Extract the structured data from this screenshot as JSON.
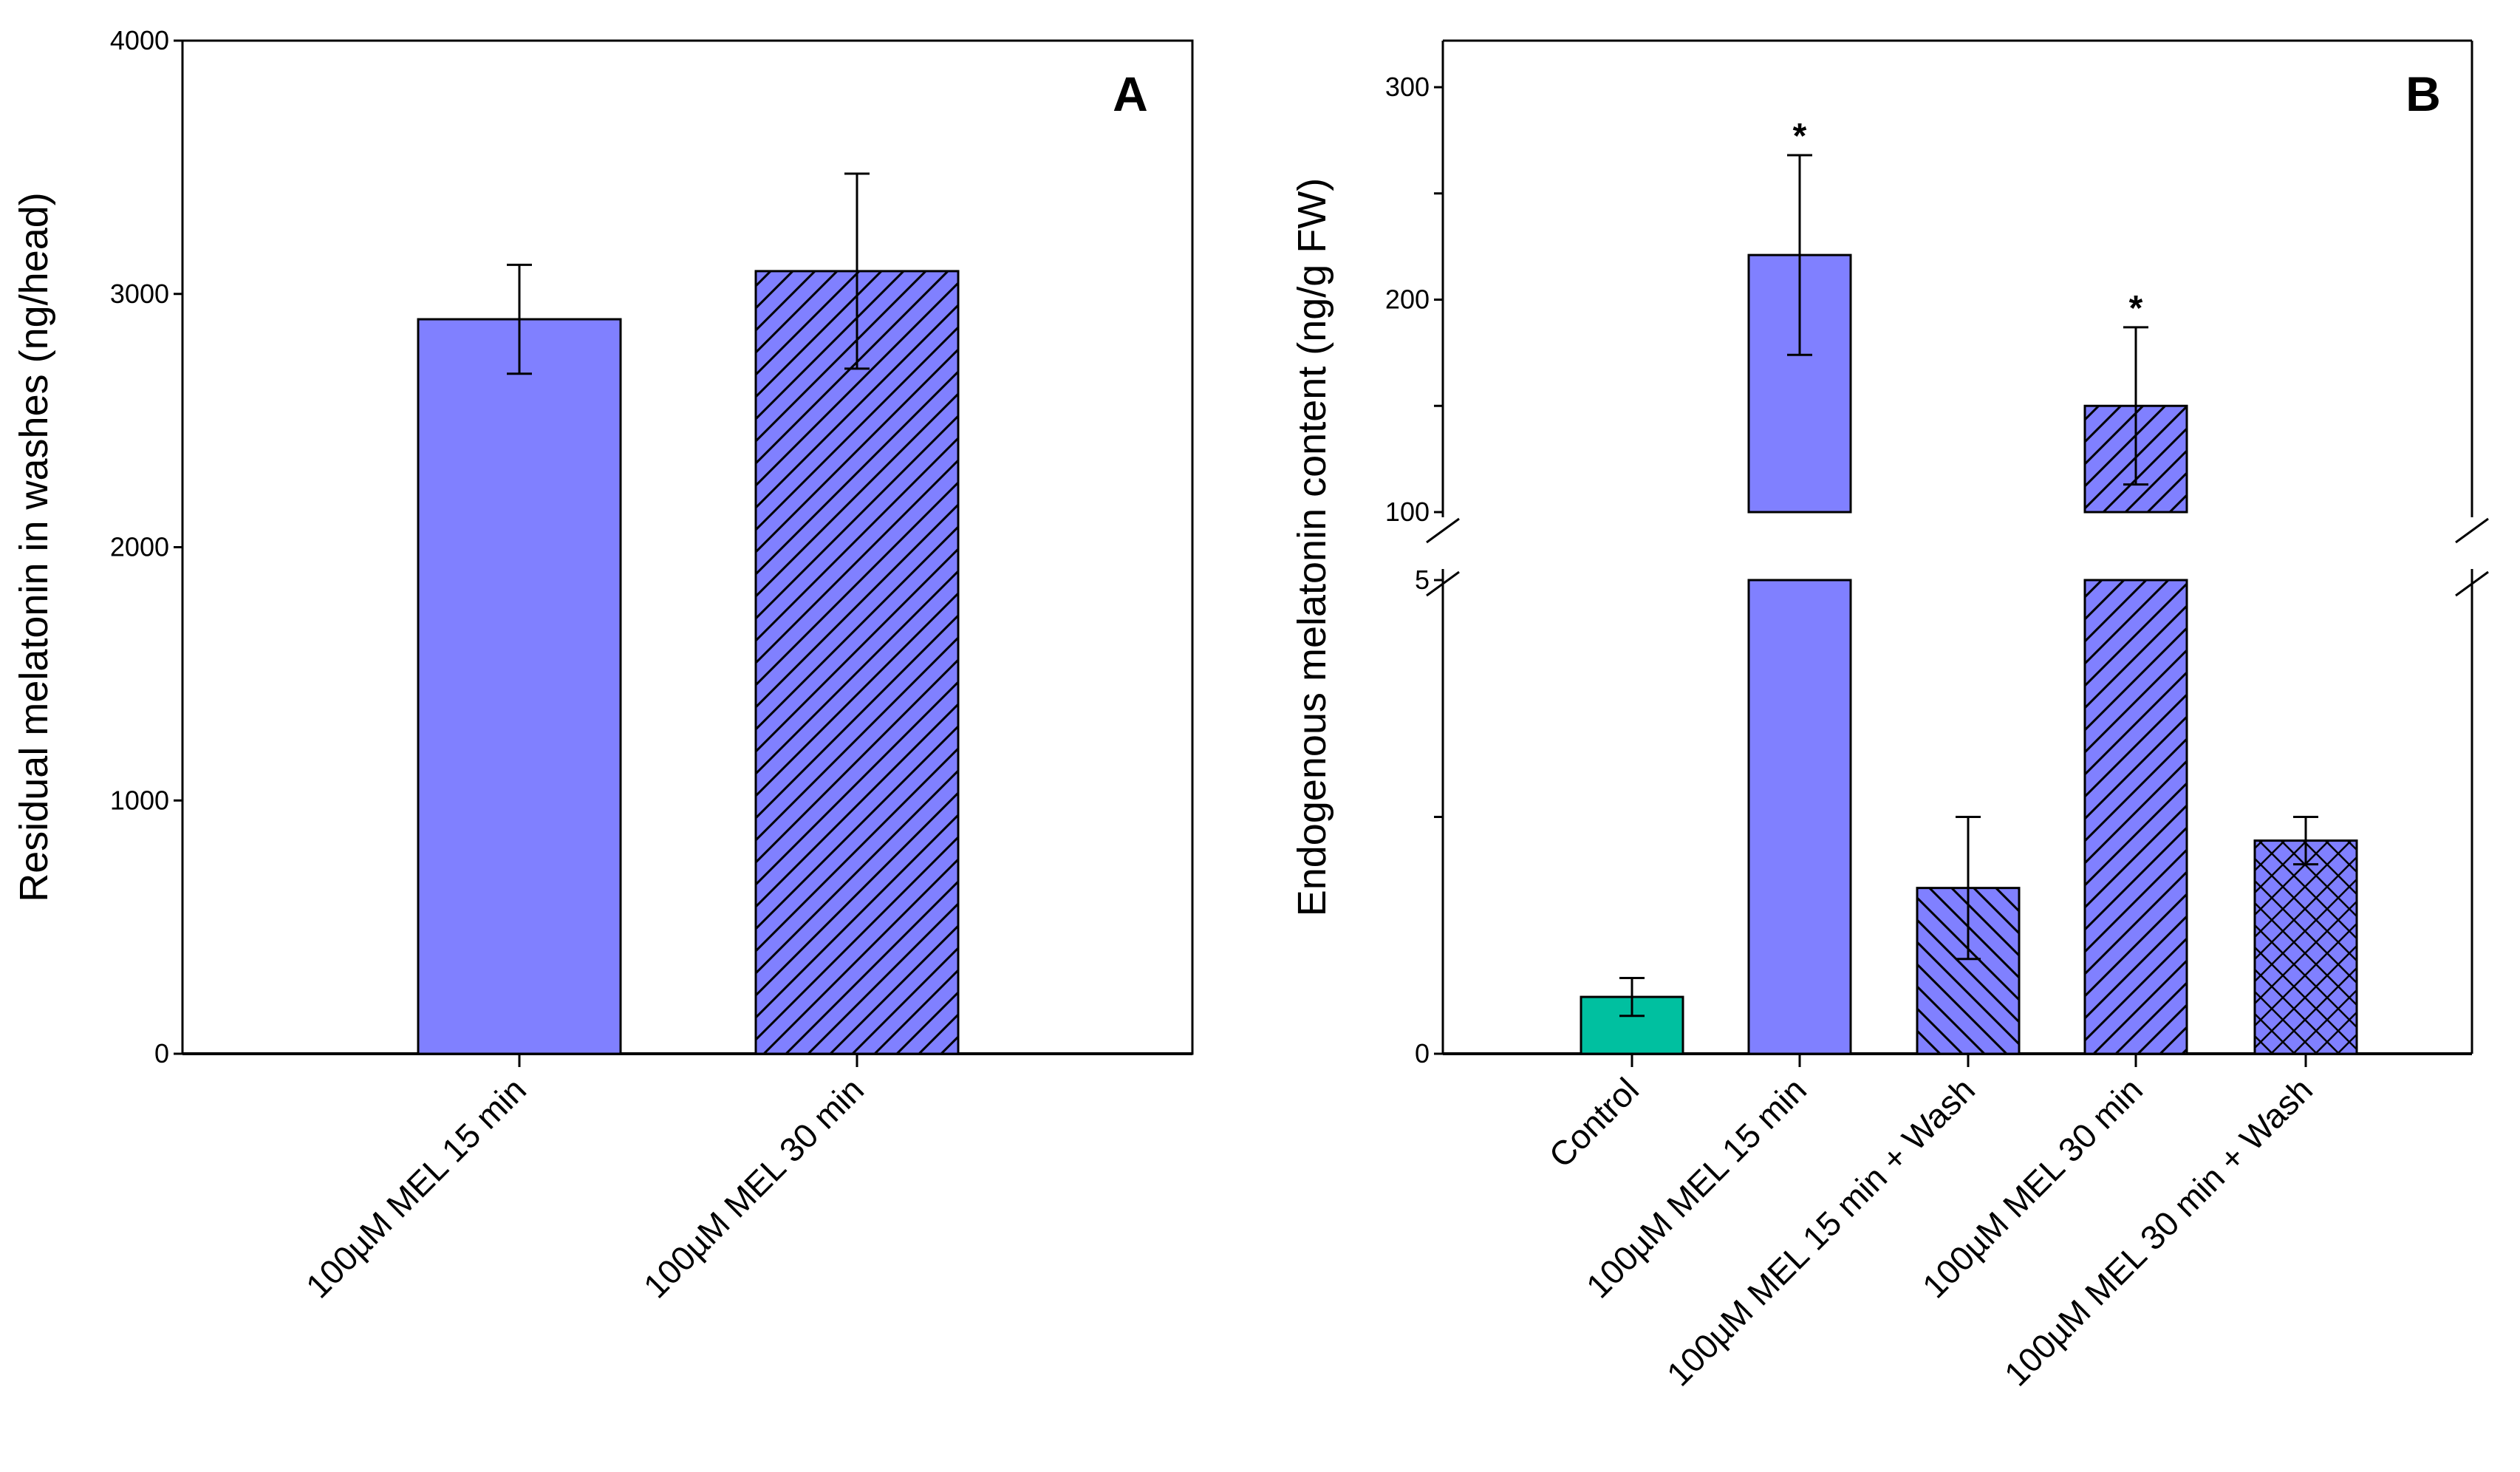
{
  "chart_data": [
    {
      "id": "A",
      "type": "bar",
      "panel_label": "A",
      "ylabel": "Residual melatonin in washes (ng/head)",
      "xlabel": "",
      "ylim": [
        0,
        4000
      ],
      "yticks": [
        0,
        1000,
        2000,
        3000,
        4000
      ],
      "categories": [
        "100µM MEL 15 min",
        "100µM  MEL 30 min"
      ],
      "values": [
        2900,
        3090
      ],
      "errors": [
        215,
        385
      ],
      "patterns": [
        "solid",
        "diag-forward"
      ],
      "colors": [
        "#8080ff",
        "#8080ff"
      ]
    },
    {
      "id": "B",
      "type": "bar",
      "panel_label": "B",
      "ylabel": "Endogenous melatonin content (ng/g FW)",
      "xlabel": "",
      "broken_axis": true,
      "ylim_lower": [
        0,
        5
      ],
      "ylim_upper": [
        100,
        320
      ],
      "yticks_lower": [
        0,
        2.5,
        5
      ],
      "yticks_lower_labels": [
        "0",
        "",
        "5"
      ],
      "yticks_upper": [
        100,
        150,
        200,
        250,
        300
      ],
      "yticks_upper_labels": [
        "100",
        "",
        "200",
        "",
        "300"
      ],
      "categories": [
        "Control",
        "100µM  MEL 15 min",
        "100µM  MEL 15 min + Wash",
        "100µM  MEL 30 min",
        "100µM  MEL 30 min + Wash"
      ],
      "values": [
        0.6,
        221,
        1.75,
        150,
        2.25
      ],
      "errors": [
        0.2,
        47,
        0.75,
        37,
        0.25
      ],
      "significance": [
        "",
        "*",
        "",
        "*",
        ""
      ],
      "patterns": [
        "solid",
        "solid",
        "diag-back",
        "diag-forward",
        "crosshatch"
      ],
      "colors": [
        "#00c0a0",
        "#8080ff",
        "#8080ff",
        "#8080ff",
        "#8080ff"
      ]
    }
  ]
}
